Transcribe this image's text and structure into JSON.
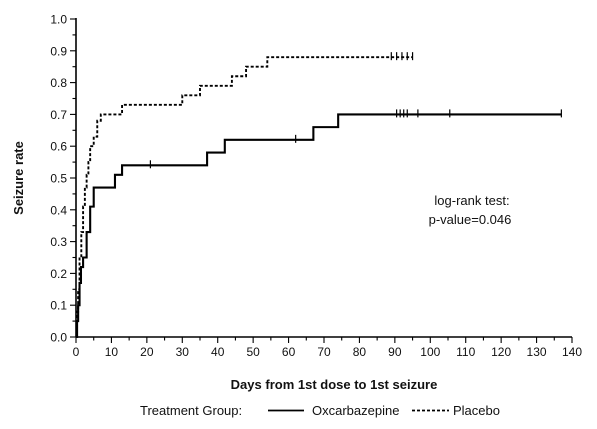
{
  "chart_data": {
    "type": "line",
    "subtype": "kaplan-meier-step",
    "title": "",
    "xlabel": "Days from 1st dose to 1st seizure",
    "ylabel": "Seizure rate",
    "xlim": [
      0,
      140
    ],
    "ylim": [
      0.0,
      1.0
    ],
    "x_ticks": [
      0,
      10,
      20,
      30,
      40,
      50,
      60,
      70,
      80,
      90,
      100,
      110,
      120,
      130,
      140
    ],
    "y_ticks": [
      "0.0",
      "0.1",
      "0.2",
      "0.3",
      "0.4",
      "0.5",
      "0.6",
      "0.7",
      "0.8",
      "0.9",
      "1.0"
    ],
    "grid": false,
    "annotation": {
      "line1": "log-rank test:",
      "line2": "p-value=0.046"
    },
    "legend": {
      "placement": "bottom",
      "title": "Treatment Group:"
    },
    "series": [
      {
        "name": "Oxcarbazepine",
        "style": "solid",
        "color": "#000000",
        "steps": [
          [
            0,
            0.0
          ],
          [
            0.3,
            0.05
          ],
          [
            0.6,
            0.1
          ],
          [
            1,
            0.17
          ],
          [
            1.4,
            0.22
          ],
          [
            2,
            0.25
          ],
          [
            3,
            0.33
          ],
          [
            4,
            0.41
          ],
          [
            5,
            0.47
          ],
          [
            11,
            0.51
          ],
          [
            13,
            0.54
          ],
          [
            37,
            0.58
          ],
          [
            42,
            0.62
          ],
          [
            67,
            0.66
          ],
          [
            74,
            0.7
          ],
          [
            137,
            0.7
          ]
        ],
        "censored": [
          [
            21,
            0.54
          ],
          [
            62,
            0.62
          ],
          [
            90.5,
            0.7
          ],
          [
            91.5,
            0.7
          ],
          [
            92.5,
            0.7
          ],
          [
            93.5,
            0.7
          ],
          [
            96.5,
            0.7
          ],
          [
            105.5,
            0.7
          ],
          [
            137,
            0.7
          ]
        ]
      },
      {
        "name": "Placebo",
        "style": "dashed",
        "color": "#000000",
        "steps": [
          [
            0,
            0.0
          ],
          [
            0.3,
            0.08
          ],
          [
            0.6,
            0.15
          ],
          [
            1,
            0.25
          ],
          [
            1.5,
            0.33
          ],
          [
            2,
            0.41
          ],
          [
            2.5,
            0.47
          ],
          [
            3,
            0.51
          ],
          [
            3.5,
            0.55
          ],
          [
            4,
            0.6
          ],
          [
            5,
            0.63
          ],
          [
            6,
            0.68
          ],
          [
            7,
            0.7
          ],
          [
            13,
            0.73
          ],
          [
            30,
            0.76
          ],
          [
            35,
            0.79
          ],
          [
            44,
            0.82
          ],
          [
            48,
            0.85
          ],
          [
            54,
            0.88
          ],
          [
            95,
            0.88
          ]
        ],
        "censored": [
          [
            89,
            0.88
          ],
          [
            90.5,
            0.88
          ],
          [
            92,
            0.88
          ],
          [
            93.5,
            0.88
          ],
          [
            95,
            0.88
          ]
        ]
      }
    ]
  }
}
